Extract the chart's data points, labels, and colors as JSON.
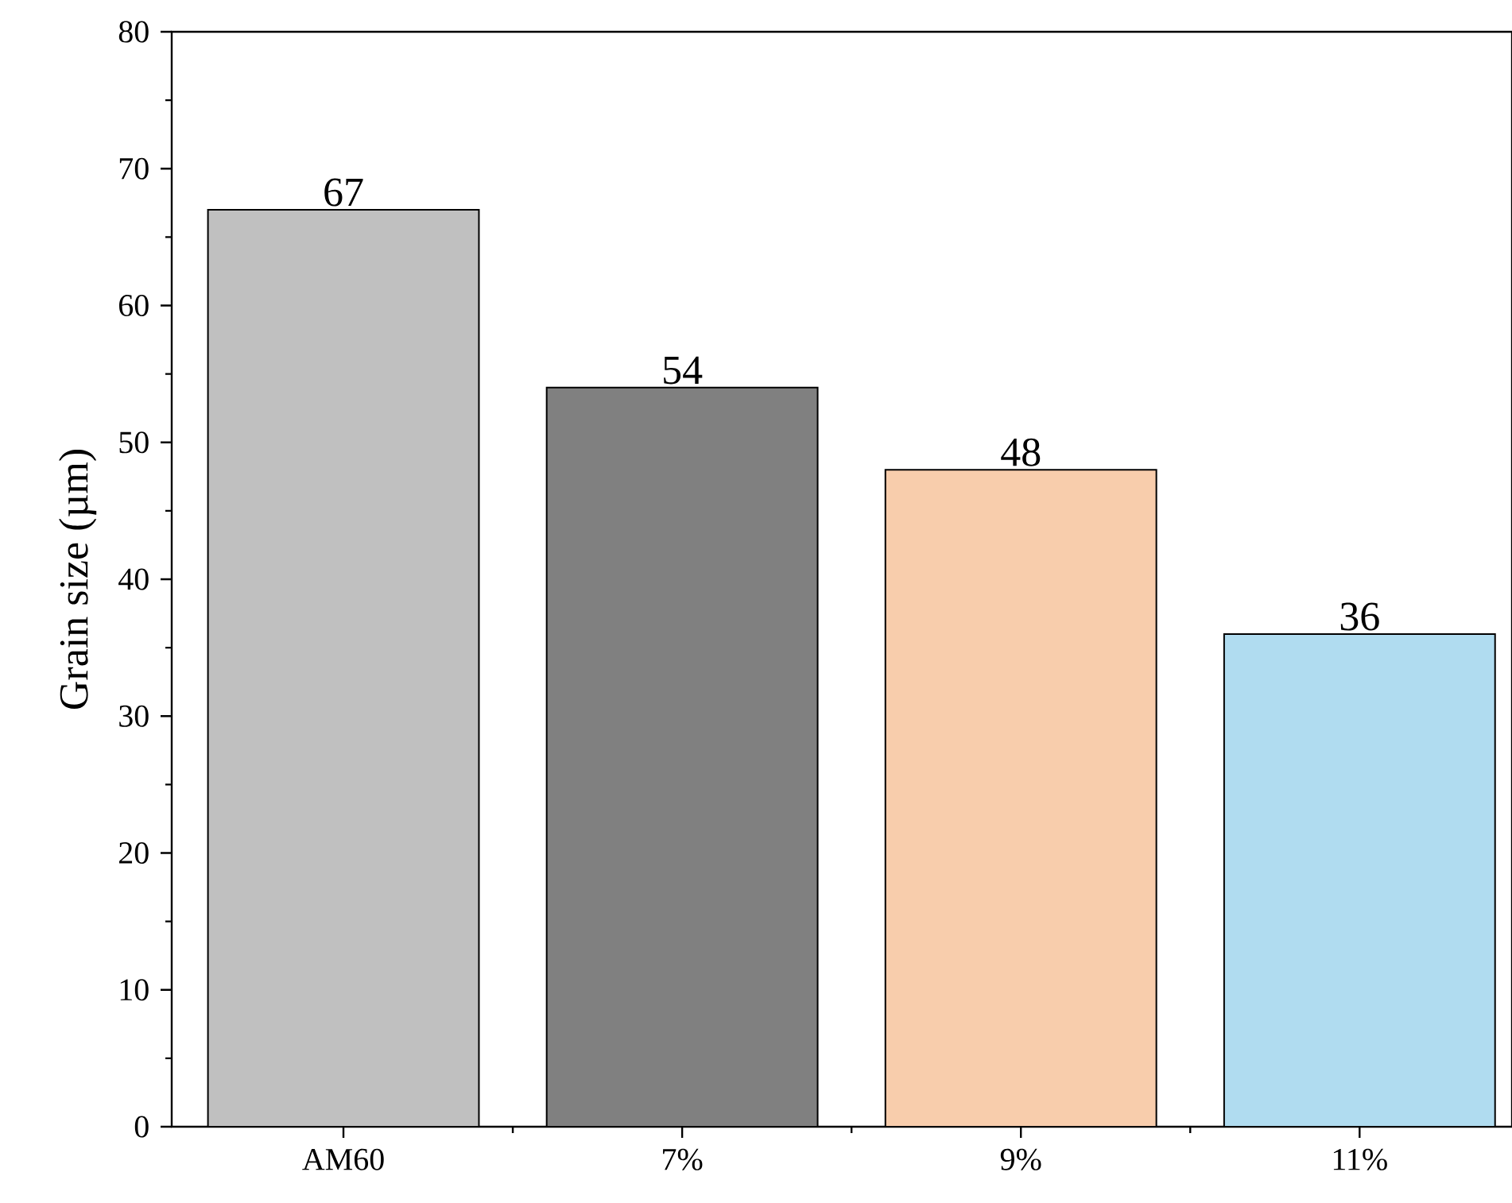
{
  "chart_data": {
    "type": "bar",
    "ylabel": "Grain size (µm)",
    "categories": [
      "AM60",
      "7%",
      "9%",
      "11%"
    ],
    "values": [
      67,
      54,
      48,
      36
    ],
    "colors": [
      "#c0c0c0",
      "#808080",
      "#f8cdac",
      "#b0dcf0"
    ],
    "ylim": [
      0,
      80
    ],
    "yticks": [
      0,
      10,
      20,
      30,
      40,
      50,
      60,
      70,
      80
    ],
    "data_labels": true,
    "grid": false
  }
}
